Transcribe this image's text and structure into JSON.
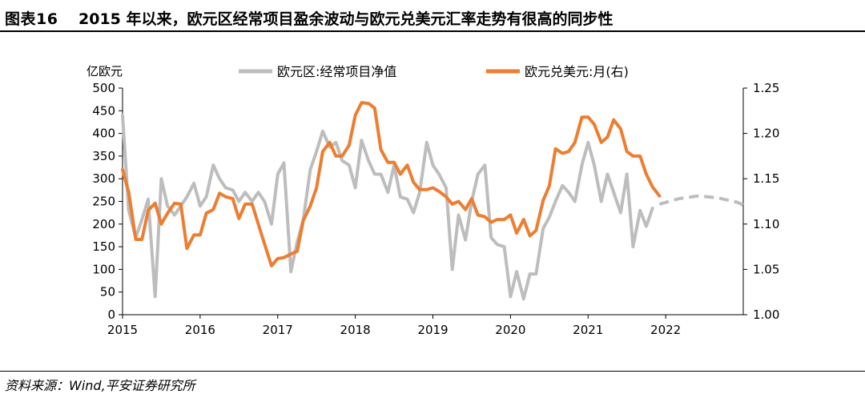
{
  "figure": {
    "label": "图表16",
    "title": "2015 年以来，欧元区经常项目盈余波动与欧元兑美元汇率走势有很高的同步性"
  },
  "source": "资料来源：Wind,平安证券研究所",
  "chart_data": {
    "type": "line",
    "ylabel": "亿欧元",
    "y_left": {
      "min": 0,
      "max": 500,
      "ticks": [
        "0",
        "50",
        "100",
        "150",
        "200",
        "250",
        "300",
        "350",
        "400",
        "450",
        "500"
      ]
    },
    "y_right": {
      "min": 1.0,
      "max": 1.25,
      "ticks": [
        "1.00",
        "1.05",
        "1.10",
        "1.15",
        "1.20",
        "1.25"
      ]
    },
    "x_ticks": [
      "2015",
      "2016",
      "2017",
      "2018",
      "2019",
      "2020",
      "2021",
      "2022"
    ],
    "x_range": [
      2015.0,
      2023.0
    ],
    "legend_position": "top",
    "series": [
      {
        "name": "欧元区:经常项目净值",
        "axis": "left",
        "color": "#bdbdbd",
        "x": [
          2015.0,
          2015.08,
          2015.17,
          2015.25,
          2015.33,
          2015.42,
          2015.5,
          2015.58,
          2015.67,
          2015.75,
          2015.83,
          2015.92,
          2016.0,
          2016.08,
          2016.17,
          2016.25,
          2016.33,
          2016.42,
          2016.5,
          2016.58,
          2016.67,
          2016.75,
          2016.83,
          2016.92,
          2017.0,
          2017.08,
          2017.17,
          2017.25,
          2017.33,
          2017.42,
          2017.5,
          2017.58,
          2017.67,
          2017.75,
          2017.83,
          2017.92,
          2018.0,
          2018.08,
          2018.17,
          2018.25,
          2018.33,
          2018.42,
          2018.5,
          2018.58,
          2018.67,
          2018.75,
          2018.83,
          2018.92,
          2019.0,
          2019.08,
          2019.17,
          2019.25,
          2019.33,
          2019.42,
          2019.5,
          2019.58,
          2019.67,
          2019.75,
          2019.83,
          2019.92,
          2020.0,
          2020.08,
          2020.17,
          2020.25,
          2020.33,
          2020.42,
          2020.5,
          2020.58,
          2020.67,
          2020.75,
          2020.83,
          2020.92,
          2021.0,
          2021.08,
          2021.17,
          2021.25,
          2021.33,
          2021.42,
          2021.5,
          2021.58,
          2021.67,
          2021.75,
          2021.83
        ],
        "values": [
          440,
          230,
          170,
          210,
          255,
          40,
          300,
          240,
          220,
          240,
          260,
          290,
          240,
          260,
          330,
          300,
          280,
          275,
          250,
          270,
          250,
          270,
          250,
          200,
          310,
          335,
          95,
          160,
          210,
          320,
          360,
          405,
          370,
          380,
          340,
          330,
          280,
          385,
          340,
          310,
          310,
          270,
          330,
          260,
          255,
          225,
          270,
          380,
          330,
          310,
          280,
          100,
          220,
          165,
          250,
          310,
          330,
          170,
          155,
          150,
          40,
          95,
          35,
          90,
          90,
          190,
          215,
          250,
          285,
          270,
          250,
          330,
          380,
          330,
          250,
          310,
          270,
          225,
          310,
          150,
          230,
          195,
          235
        ]
      },
      {
        "name": "欧元兑美元:月(右)",
        "axis": "right",
        "color": "#ed7d31",
        "x": [
          2015.0,
          2015.08,
          2015.17,
          2015.25,
          2015.33,
          2015.42,
          2015.5,
          2015.58,
          2015.67,
          2015.75,
          2015.83,
          2015.92,
          2016.0,
          2016.08,
          2016.17,
          2016.25,
          2016.33,
          2016.42,
          2016.5,
          2016.58,
          2016.67,
          2016.75,
          2016.83,
          2016.92,
          2017.0,
          2017.08,
          2017.17,
          2017.25,
          2017.33,
          2017.42,
          2017.5,
          2017.58,
          2017.67,
          2017.75,
          2017.83,
          2017.92,
          2018.0,
          2018.08,
          2018.17,
          2018.25,
          2018.33,
          2018.42,
          2018.5,
          2018.58,
          2018.67,
          2018.75,
          2018.83,
          2018.92,
          2019.0,
          2019.08,
          2019.17,
          2019.25,
          2019.33,
          2019.42,
          2019.5,
          2019.58,
          2019.67,
          2019.75,
          2019.83,
          2019.92,
          2020.0,
          2020.08,
          2020.17,
          2020.25,
          2020.33,
          2020.42,
          2020.5,
          2020.58,
          2020.67,
          2020.75,
          2020.83,
          2020.92,
          2021.0,
          2021.08,
          2021.17,
          2021.25,
          2021.33,
          2021.42,
          2021.5,
          2021.58,
          2021.67,
          2021.75,
          2021.83,
          2021.92
        ],
        "values": [
          1.16,
          1.135,
          1.083,
          1.083,
          1.115,
          1.123,
          1.1,
          1.112,
          1.123,
          1.122,
          1.073,
          1.088,
          1.088,
          1.112,
          1.116,
          1.134,
          1.13,
          1.128,
          1.106,
          1.122,
          1.122,
          1.1,
          1.078,
          1.054,
          1.062,
          1.063,
          1.067,
          1.07,
          1.104,
          1.12,
          1.14,
          1.18,
          1.19,
          1.175,
          1.175,
          1.187,
          1.22,
          1.234,
          1.233,
          1.228,
          1.182,
          1.168,
          1.168,
          1.155,
          1.165,
          1.146,
          1.138,
          1.138,
          1.14,
          1.136,
          1.13,
          1.122,
          1.125,
          1.116,
          1.128,
          1.11,
          1.108,
          1.102,
          1.105,
          1.105,
          1.11,
          1.09,
          1.105,
          1.087,
          1.093,
          1.126,
          1.142,
          1.183,
          1.178,
          1.18,
          1.19,
          1.218,
          1.218,
          1.21,
          1.19,
          1.196,
          1.215,
          1.205,
          1.18,
          1.175,
          1.175,
          1.155,
          1.141,
          1.131
        ]
      },
      {
        "name": "",
        "axis": "right",
        "color": "#bdbdbd",
        "dashed": true,
        "x": [
          2021.92,
          2022.17,
          2022.42,
          2022.67,
          2022.92,
          2023.0
        ],
        "values": [
          1.122,
          1.128,
          1.131,
          1.129,
          1.124,
          1.121
        ]
      }
    ]
  }
}
